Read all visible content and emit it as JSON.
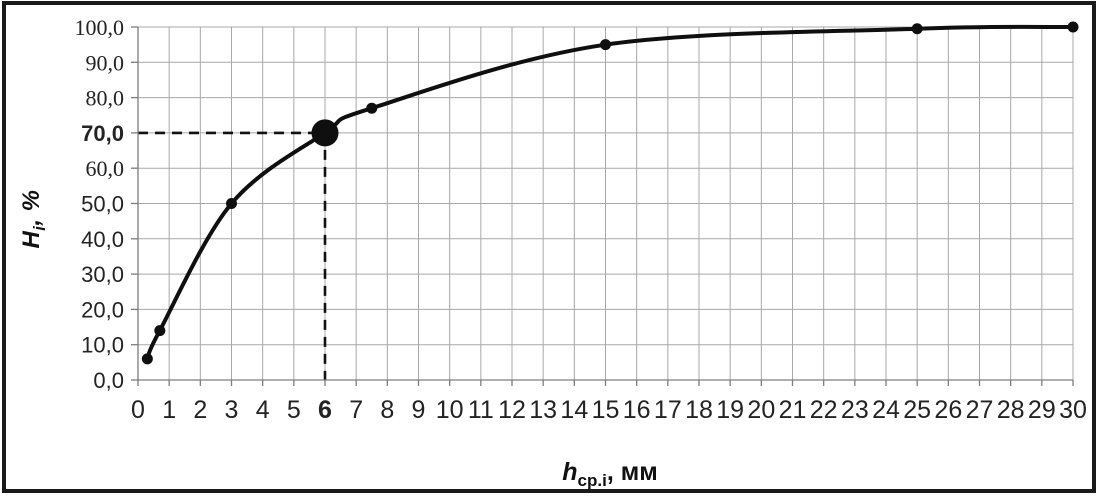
{
  "chart_data": {
    "type": "line",
    "title": "",
    "xlabel": "h_ср.i, мм",
    "ylabel": "H_i, %",
    "grid": true,
    "legend": false,
    "x_axis": {
      "title_main": "h",
      "title_sub": "ср.i",
      "title_rest": ", мм",
      "min": 0,
      "max": 30,
      "ticks": [
        {
          "label": "0",
          "value": 0
        },
        {
          "label": "1",
          "value": 1
        },
        {
          "label": "2",
          "value": 2
        },
        {
          "label": "3",
          "value": 3
        },
        {
          "label": "4",
          "value": 4
        },
        {
          "label": "5",
          "value": 5
        },
        {
          "label": "6",
          "value": 6,
          "bold": true
        },
        {
          "label": "7",
          "value": 7
        },
        {
          "label": "8",
          "value": 8
        },
        {
          "label": "9",
          "value": 9
        },
        {
          "label": "10",
          "value": 10
        },
        {
          "label": "11",
          "value": 11
        },
        {
          "label": "12",
          "value": 12
        },
        {
          "label": "13",
          "value": 13
        },
        {
          "label": "14",
          "value": 14
        },
        {
          "label": "15",
          "value": 15
        },
        {
          "label": "16",
          "value": 16
        },
        {
          "label": "17",
          "value": 17
        },
        {
          "label": "18",
          "value": 18
        },
        {
          "label": "19",
          "value": 19
        },
        {
          "label": "20",
          "value": 20
        },
        {
          "label": "21",
          "value": 21
        },
        {
          "label": "22",
          "value": 22
        },
        {
          "label": "23",
          "value": 23
        },
        {
          "label": "24",
          "value": 24
        },
        {
          "label": "25",
          "value": 25
        },
        {
          "label": "26",
          "value": 26
        },
        {
          "label": "27",
          "value": 27
        },
        {
          "label": "28",
          "value": 28
        },
        {
          "label": "29",
          "value": 29
        },
        {
          "label": "30",
          "value": 30
        }
      ]
    },
    "y_axis": {
      "title_main": "H",
      "title_sub": "i",
      "title_rest": ", %",
      "min": 0,
      "max": 100,
      "ticks": [
        {
          "label": "0,0",
          "value": 0
        },
        {
          "label": "10,0",
          "value": 10
        },
        {
          "label": "20,0",
          "value": 20
        },
        {
          "label": "30,0",
          "value": 30
        },
        {
          "label": "40,0",
          "value": 40
        },
        {
          "label": "50,0",
          "value": 50
        },
        {
          "label": "60,0",
          "value": 60,
          "serif": true
        },
        {
          "label": "70,0",
          "value": 70,
          "bold": true
        },
        {
          "label": "80,0",
          "value": 80,
          "serif": true
        },
        {
          "label": "90,0",
          "value": 90,
          "serif": true
        },
        {
          "label": "100,0",
          "value": 100,
          "serif": true
        }
      ]
    },
    "series": [
      {
        "name": "cumulative-distribution-curve",
        "marker": "circle",
        "points": [
          {
            "x": 0.3,
            "y": 6
          },
          {
            "x": 0.7,
            "y": 14
          },
          {
            "x": 3,
            "y": 50
          },
          {
            "x": 6,
            "y": 70
          },
          {
            "x": 7.5,
            "y": 77
          },
          {
            "x": 15,
            "y": 95
          },
          {
            "x": 25,
            "y": 99.5
          },
          {
            "x": 30,
            "y": 100
          }
        ]
      }
    ],
    "highlight": {
      "x": 6,
      "y": 70
    },
    "colors": {
      "curve": "#0f0f0f",
      "marker": "#0f0f0f",
      "grid": "#a8a8a8",
      "axis": "#7d7d7d",
      "dash": "#111111",
      "tick_label": "#232323",
      "frame_border": "#1a1a1a",
      "background": "#ffffff"
    }
  }
}
